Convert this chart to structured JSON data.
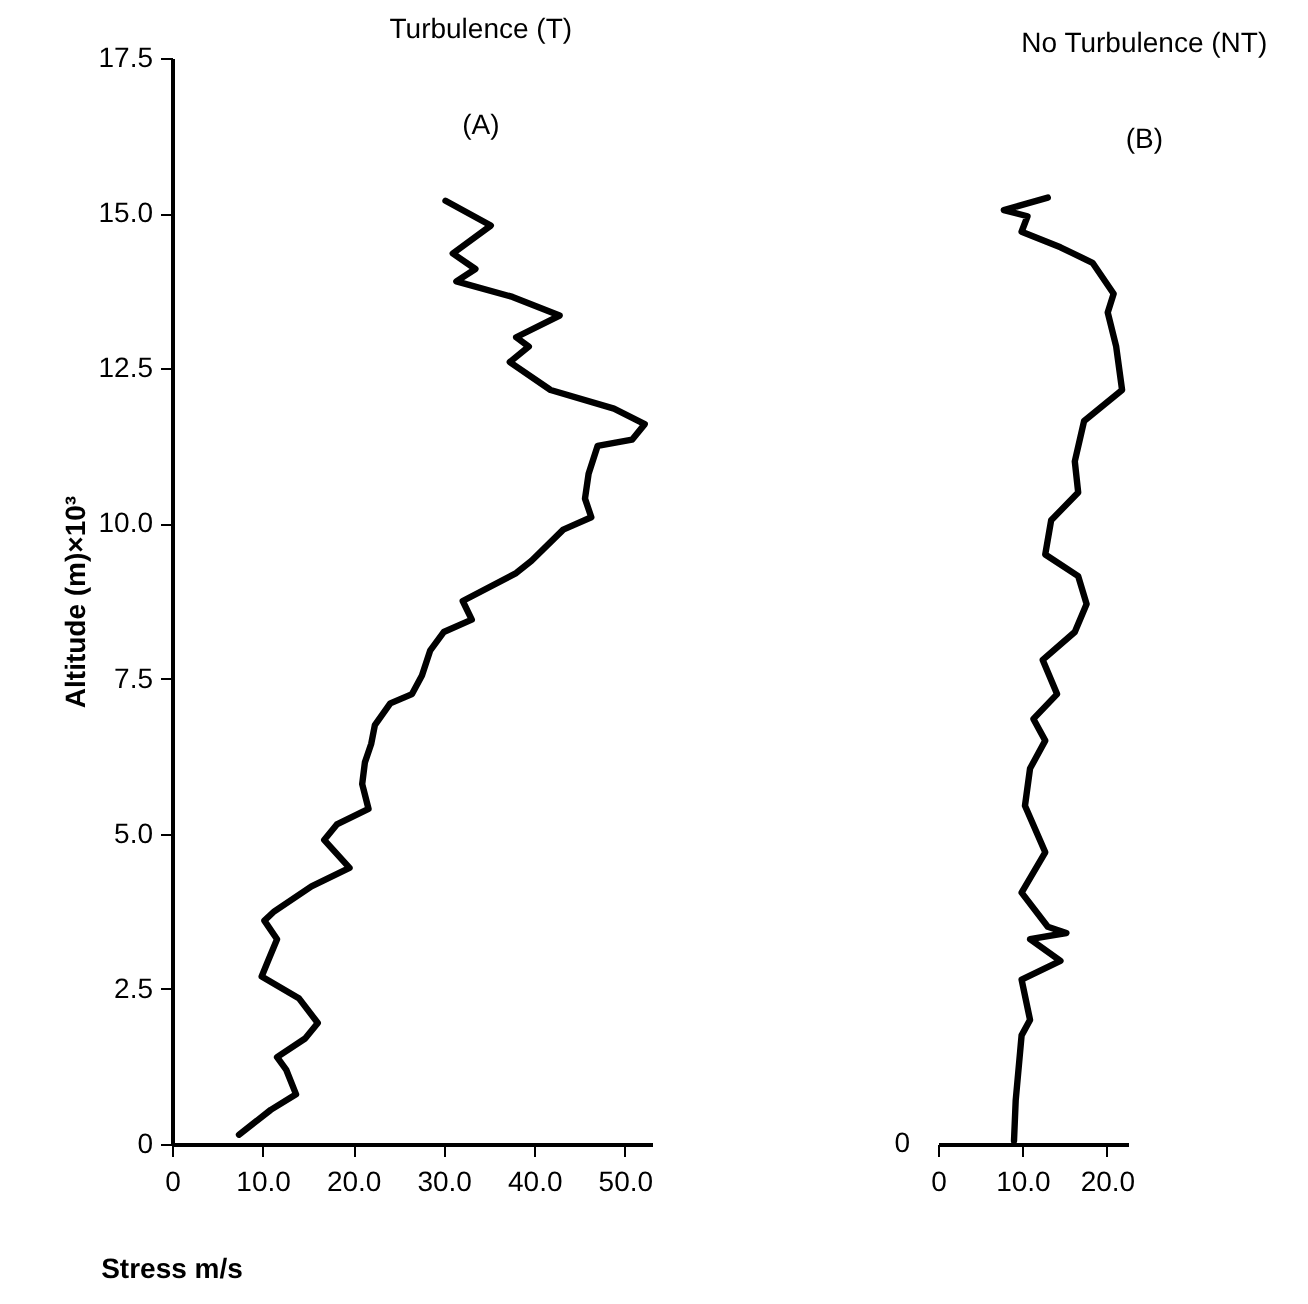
{
  "chart_data": [
    {
      "type": "line",
      "title": "Turbulence (T)",
      "subtitle": "(A)",
      "xlabel": "Stress m/s",
      "ylabel": "Altitude (m)×10³",
      "xlim": [
        0,
        53
      ],
      "xticks": [
        0,
        {
          "value": 10,
          "label": "10.0"
        },
        {
          "value": 20,
          "label": "20.0"
        },
        {
          "value": 30,
          "label": "30.0"
        },
        {
          "value": 40,
          "label": "40.0"
        },
        {
          "value": 50,
          "label": "50.0"
        }
      ],
      "ylim": [
        0,
        17.5
      ],
      "yticks": [
        0,
        2.5,
        {
          "value": 5,
          "label": "5.0"
        },
        7.5,
        {
          "value": 10,
          "label": "10.0"
        },
        12.5,
        {
          "value": 15,
          "label": "15.0"
        },
        17.5
      ],
      "grid": false,
      "line_style": "solid",
      "series": [
        {
          "color": "#000000",
          "x": [
            30.2,
            35.2,
            31.0,
            33.5,
            31.4,
            37.6,
            42.8,
            38.0,
            39.4,
            37.3,
            41.8,
            48.8,
            52.2,
            50.8,
            47.0,
            46.0,
            45.6,
            46.3,
            43.2,
            39.7,
            38.0,
            32.1,
            33.1,
            30.0,
            28.5,
            27.6,
            26.5,
            24.1,
            22.4,
            22.0,
            21.3,
            21.0,
            21.7,
            18.2,
            16.8,
            19.6,
            15.4,
            11.3,
            10.2,
            11.6,
            10.6,
            9.9,
            14.0,
            16.1,
            14.7,
            11.6,
            12.6,
            13.7,
            10.9,
            7.4
          ],
          "values": [
            15.2,
            14.8,
            14.35,
            14.1,
            13.9,
            13.65,
            13.35,
            13.0,
            12.85,
            12.6,
            12.15,
            11.85,
            11.6,
            11.35,
            11.25,
            10.8,
            10.4,
            10.1,
            9.9,
            9.4,
            9.2,
            8.75,
            8.45,
            8.25,
            7.95,
            7.55,
            7.25,
            7.1,
            6.75,
            6.45,
            6.15,
            5.8,
            5.4,
            5.15,
            4.9,
            4.45,
            4.15,
            3.75,
            3.6,
            3.3,
            2.95,
            2.7,
            2.35,
            1.95,
            1.7,
            1.4,
            1.2,
            0.8,
            0.55,
            0.15
          ]
        }
      ]
    },
    {
      "type": "line",
      "title": "No Turbulence (NT)",
      "subtitle": "(B)",
      "xlim": [
        0,
        22.5
      ],
      "xticks": [
        0,
        {
          "value": 10,
          "label": "10.0"
        },
        {
          "value": 20,
          "label": "20.0"
        }
      ],
      "ylim": [
        0,
        17.5
      ],
      "tick_labels": "x",
      "annotations": [
        "0"
      ],
      "grid": false,
      "line_style": "solid",
      "series": [
        {
          "color": "#000000",
          "x": [
            13.0,
            7.8,
            10.6,
            9.9,
            14.5,
            18.3,
            20.8,
            20.1,
            21.1,
            21.8,
            17.3,
            16.2,
            16.6,
            13.4,
            12.7,
            16.6,
            17.6,
            16.2,
            12.4,
            14.1,
            11.3,
            12.7,
            10.9,
            10.3,
            12.7,
            9.9,
            13.0,
            15.2,
            10.9,
            14.5,
            9.9,
            10.9,
            9.9,
            9.2,
            9.0
          ],
          "values": [
            15.25,
            15.05,
            14.95,
            14.7,
            14.45,
            14.2,
            13.7,
            13.4,
            12.85,
            12.15,
            11.65,
            11.0,
            10.5,
            10.05,
            9.5,
            9.15,
            8.7,
            8.25,
            7.8,
            7.25,
            6.85,
            6.5,
            6.05,
            5.45,
            4.7,
            4.05,
            3.5,
            3.4,
            3.3,
            2.95,
            2.65,
            2.0,
            1.75,
            0.7,
            0.05
          ]
        }
      ]
    }
  ]
}
